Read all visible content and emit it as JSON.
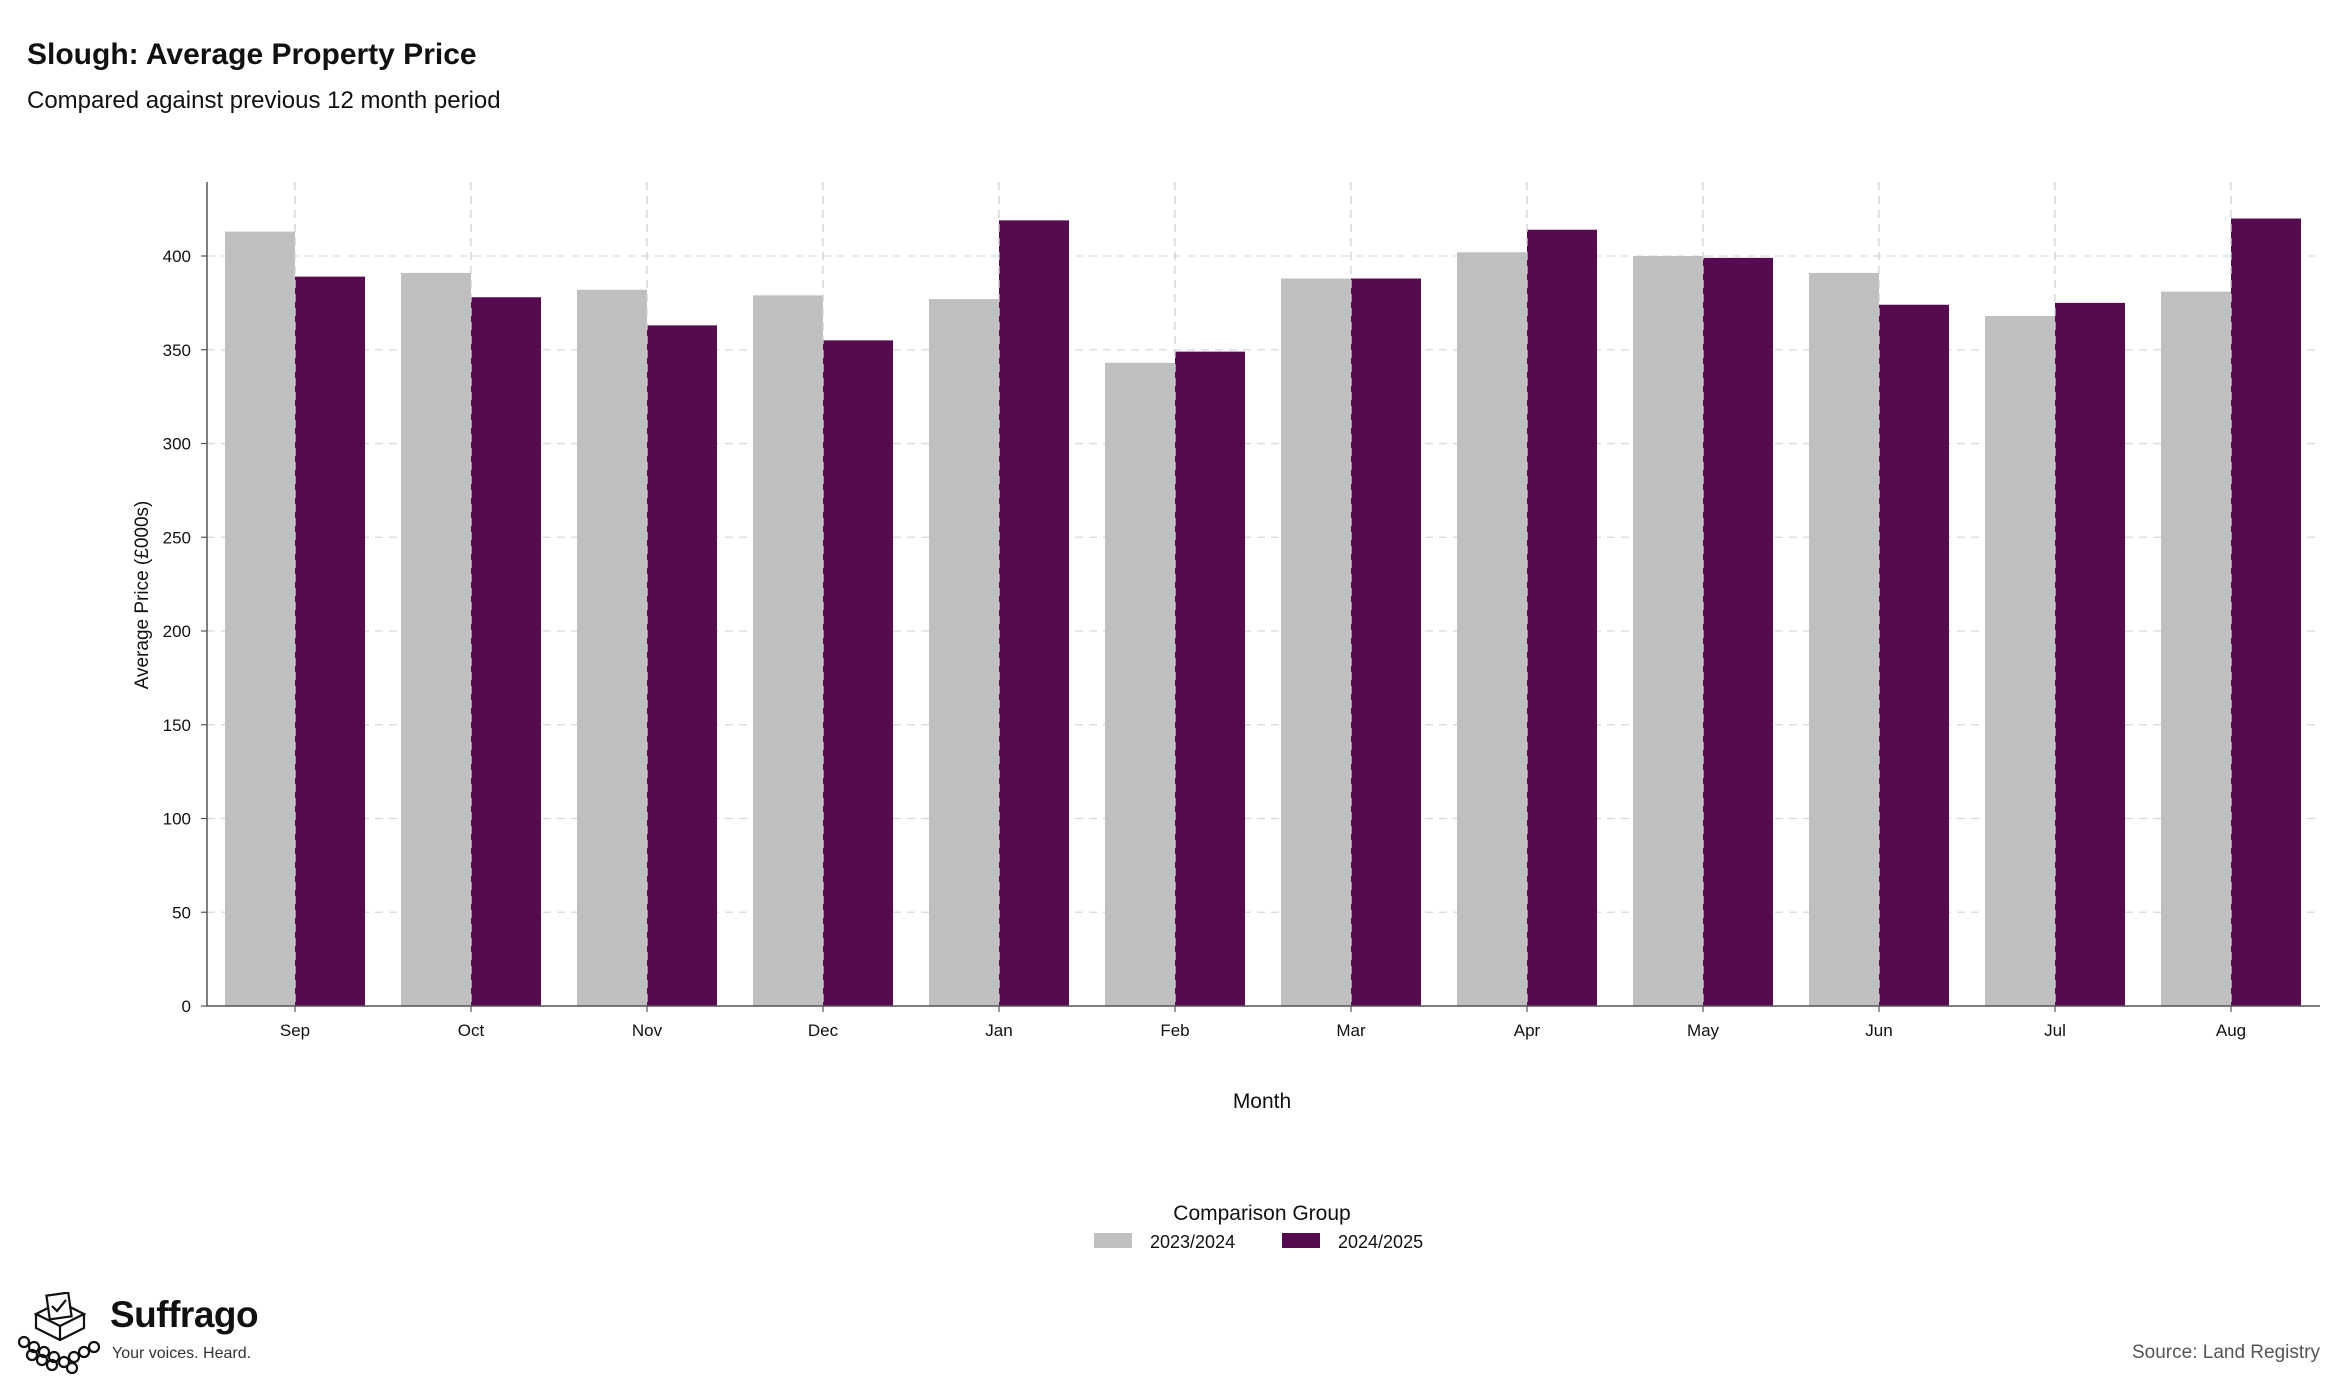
{
  "header": {
    "title": "Slough: Average Property Price",
    "subtitle": "Compared against previous 12 month period"
  },
  "chart_data": {
    "type": "bar",
    "categories": [
      "Sep",
      "Oct",
      "Nov",
      "Dec",
      "Jan",
      "Feb",
      "Mar",
      "Apr",
      "May",
      "Jun",
      "Jul",
      "Aug"
    ],
    "series": [
      {
        "name": "2023/2024",
        "color": "#bfbfbf",
        "values": [
          413,
          391,
          382,
          379,
          377,
          343,
          388,
          402,
          400,
          391,
          368,
          381
        ]
      },
      {
        "name": "2024/2025",
        "color": "#560b51",
        "values": [
          389,
          378,
          363,
          355,
          419,
          349,
          388,
          414,
          399,
          374,
          375,
          420
        ]
      }
    ],
    "xlabel": "Month",
    "ylabel": "Average Price (£000s)",
    "ylim": [
      0,
      440
    ],
    "yticks": [
      0,
      50,
      100,
      150,
      200,
      250,
      300,
      350,
      400
    ],
    "grid": true,
    "legend_title": "Comparison Group",
    "legend_position": "bottom"
  },
  "footer": {
    "brand_name": "Suffrago",
    "brand_tagline": "Your voices. Heard.",
    "source": "Source: Land Registry"
  }
}
